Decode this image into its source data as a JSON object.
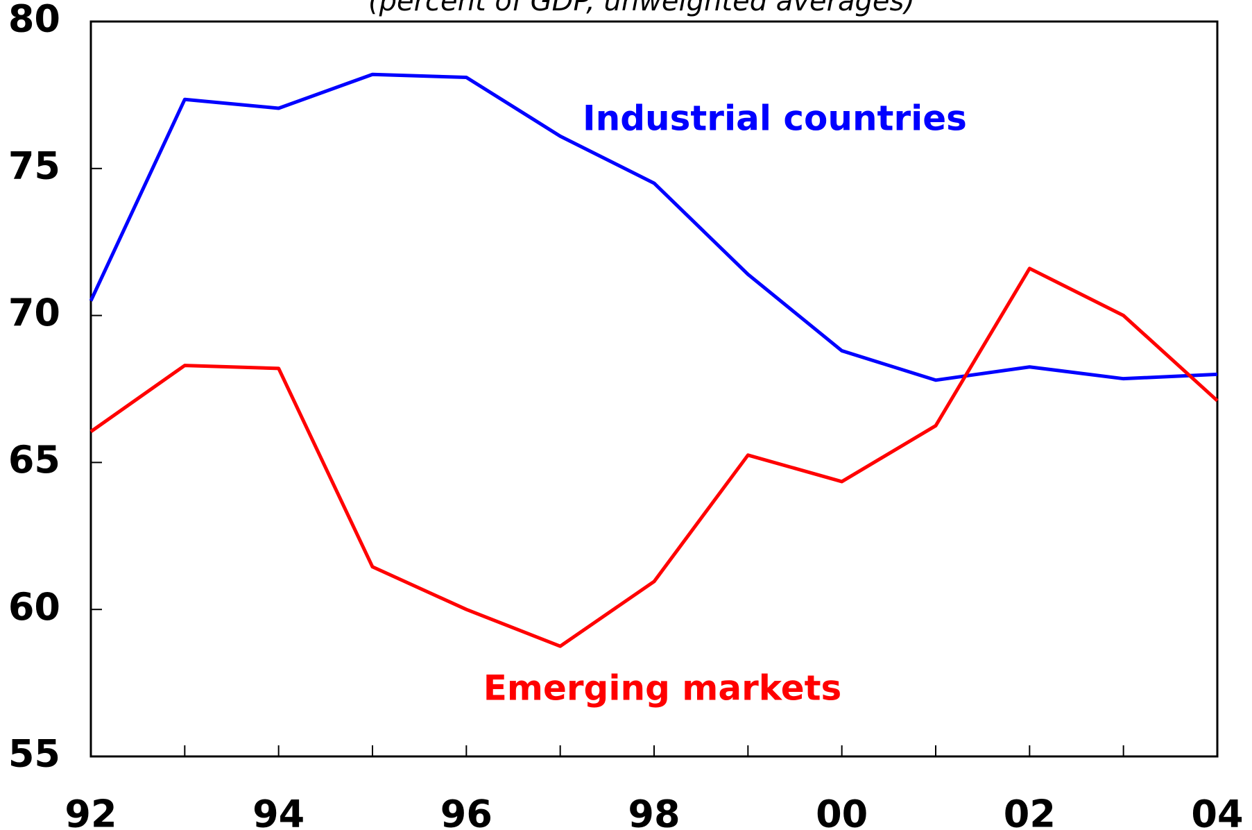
{
  "chart_data": {
    "type": "line",
    "subtitle": "(percent of GDP, unweighted averages)",
    "categories": [
      "92",
      null,
      "94",
      null,
      "96",
      null,
      "98",
      null,
      "00",
      null,
      "02",
      null,
      "04"
    ],
    "series": [
      {
        "name": "Industrial countries",
        "color": "#0000ff",
        "values": [
          70.5,
          77.35,
          77.05,
          78.2,
          78.1,
          76.1,
          74.5,
          71.4,
          68.8,
          67.8,
          68.25,
          67.85,
          68.0
        ]
      },
      {
        "name": "Emerging markets",
        "color": "#ff0000",
        "values": [
          66.05,
          68.3,
          68.2,
          61.45,
          60.0,
          58.75,
          60.95,
          65.25,
          64.35,
          66.25,
          71.6,
          70.0,
          67.1
        ]
      }
    ],
    "ylim": [
      55,
      80
    ],
    "yticks": [
      55,
      60,
      65,
      70,
      75,
      80
    ]
  }
}
